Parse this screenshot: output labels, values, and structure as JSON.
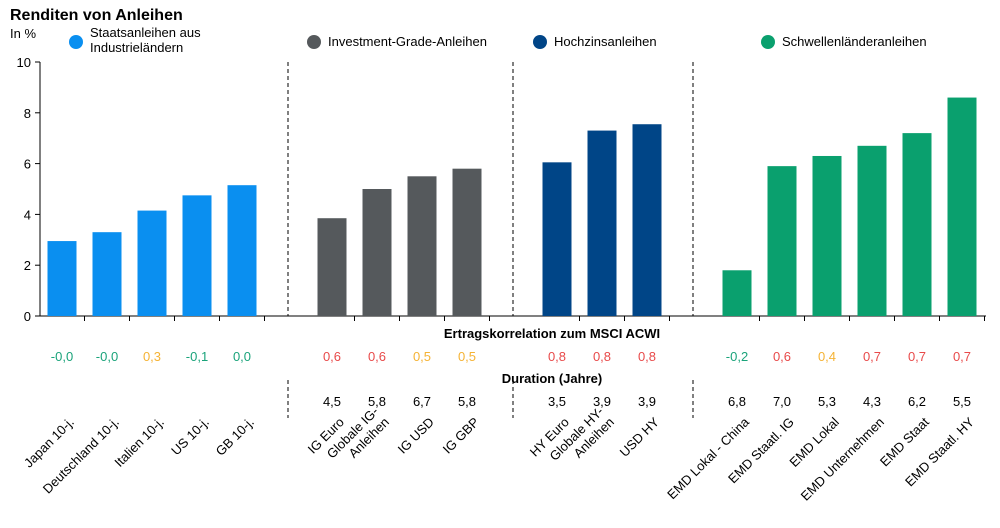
{
  "chart_data": {
    "type": "bar",
    "title": "Renditen von Anleihen",
    "ylabel": "In %",
    "ylim": [
      0,
      10
    ],
    "yticks": [
      "0",
      "2",
      "4",
      "6",
      "8",
      "10"
    ],
    "grid": false,
    "legend_position": "top",
    "correlation_label": "Ertragskorrelation zum MSCI ACWI",
    "duration_label": "Duration (Jahre)",
    "colors": {
      "positive_high": "#e84a4a",
      "positive_mid": "#f5b335",
      "negative": "#1aa37a"
    },
    "groups": [
      {
        "name": "Staatsanleihen aus Industrieländern",
        "name_lines": [
          "Staatsanleihen aus",
          "Industrieländern"
        ],
        "color": "#0a8ff0",
        "categories": [
          "Japan 10-j.",
          "Deutschland 10-j.",
          "Italien 10-j.",
          "US 10-j.",
          "GB 10-j."
        ],
        "category_lines": [
          [
            "Japan 10-j."
          ],
          [
            "Deutschland 10-j."
          ],
          [
            "Italien 10-j."
          ],
          [
            "US 10-j."
          ],
          [
            "GB 10-j."
          ]
        ],
        "values": [
          2.95,
          3.3,
          4.15,
          4.75,
          5.15
        ],
        "correlation": [
          "-0,0",
          "-0,0",
          "0,3",
          "-0,1",
          "0,0"
        ],
        "correlation_colors": [
          "#1aa37a",
          "#1aa37a",
          "#f5b335",
          "#1aa37a",
          "#1aa37a"
        ],
        "duration": [
          "",
          "",
          "",
          "",
          ""
        ]
      },
      {
        "name": "Investment-Grade-Anleihen",
        "name_lines": [
          "Investment-Grade-Anleihen"
        ],
        "color": "#55595c",
        "categories": [
          "IG Euro",
          "Globale IG-Anleihen",
          "IG USD",
          "IG GBP"
        ],
        "category_lines": [
          [
            "IG Euro"
          ],
          [
            "Globale IG-",
            "Anleihen"
          ],
          [
            "IG USD"
          ],
          [
            "IG GBP"
          ]
        ],
        "values": [
          3.85,
          5.0,
          5.5,
          5.8
        ],
        "correlation": [
          "0,6",
          "0,6",
          "0,5",
          "0,5"
        ],
        "correlation_colors": [
          "#e84a4a",
          "#e84a4a",
          "#f5b335",
          "#f5b335"
        ],
        "duration": [
          "4,5",
          "5,8",
          "6,7",
          "5,8"
        ]
      },
      {
        "name": "Hochzinsanleihen",
        "name_lines": [
          "Hochzinsanleihen"
        ],
        "color": "#004587",
        "categories": [
          "HY Euro",
          "Globale HY-Anleihen",
          "USD HY"
        ],
        "category_lines": [
          [
            "HY Euro"
          ],
          [
            "Globale HY-",
            "Anleihen"
          ],
          [
            "USD HY"
          ]
        ],
        "values": [
          6.05,
          7.3,
          7.55
        ],
        "correlation": [
          "0,8",
          "0,8",
          "0,8"
        ],
        "correlation_colors": [
          "#e84a4a",
          "#e84a4a",
          "#e84a4a"
        ],
        "duration": [
          "3,5",
          "3,9",
          "3,9"
        ]
      },
      {
        "name": "Schwellenländeranleihen",
        "name_lines": [
          "Schwellenländeranleihen"
        ],
        "color": "#0aa06e",
        "categories": [
          "EMD Lokal - China",
          "EMD Staatl. IG",
          "EMD Lokal",
          "EMD Unternehmen",
          "EMD Staat",
          "EMD Staatl. HY"
        ],
        "category_lines": [
          [
            "EMD Lokal - China"
          ],
          [
            "EMD Staatl. IG"
          ],
          [
            "EMD Lokal"
          ],
          [
            "EMD Unternehmen"
          ],
          [
            "EMD Staat"
          ],
          [
            "EMD Staatl. HY"
          ]
        ],
        "values": [
          1.8,
          5.9,
          6.3,
          6.7,
          7.2,
          8.6
        ],
        "correlation": [
          "-0,2",
          "0,6",
          "0,4",
          "0,7",
          "0,7",
          "0,7"
        ],
        "correlation_colors": [
          "#1aa37a",
          "#e84a4a",
          "#f5b335",
          "#e84a4a",
          "#e84a4a",
          "#e84a4a"
        ],
        "duration": [
          "6,8",
          "7,0",
          "5,3",
          "4,3",
          "6,2",
          "5,5"
        ]
      }
    ]
  }
}
